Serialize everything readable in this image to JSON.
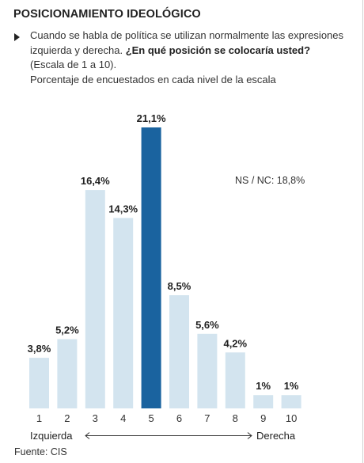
{
  "header": {
    "title": "POSICIONAMIENTO IDEOLÓGICO",
    "question_part1": "Cuando se habla de política se utilizan normalmente las expresiones izquierda y derecha. ",
    "question_bold": "¿En qué posición se colocaría usted?",
    "question_part2": " (Escala de 1 a 10).",
    "question_line3": "Porcentaje de encuestados en cada nivel de la escala"
  },
  "note": "NS / NC: 18,8%",
  "source": "Fuente: CIS",
  "colors": {
    "bar": "#d3e4ef",
    "highlight": "#1a639f",
    "axis": "#333333"
  },
  "chart_data": {
    "type": "bar",
    "categories": [
      "1",
      "2",
      "3",
      "4",
      "5",
      "6",
      "7",
      "8",
      "9",
      "10"
    ],
    "values": [
      3.8,
      5.2,
      16.4,
      14.3,
      21.1,
      8.5,
      5.6,
      4.2,
      1,
      1
    ],
    "labels": [
      "3,8%",
      "5,2%",
      "16,4%",
      "14,3%",
      "21,1%",
      "8,5%",
      "5,6%",
      "4,2%",
      "1%",
      "1%"
    ],
    "highlight_index": 4,
    "xlabel_left": "Izquierda",
    "xlabel_right": "Derecha",
    "ylim": [
      0,
      21.1
    ]
  }
}
